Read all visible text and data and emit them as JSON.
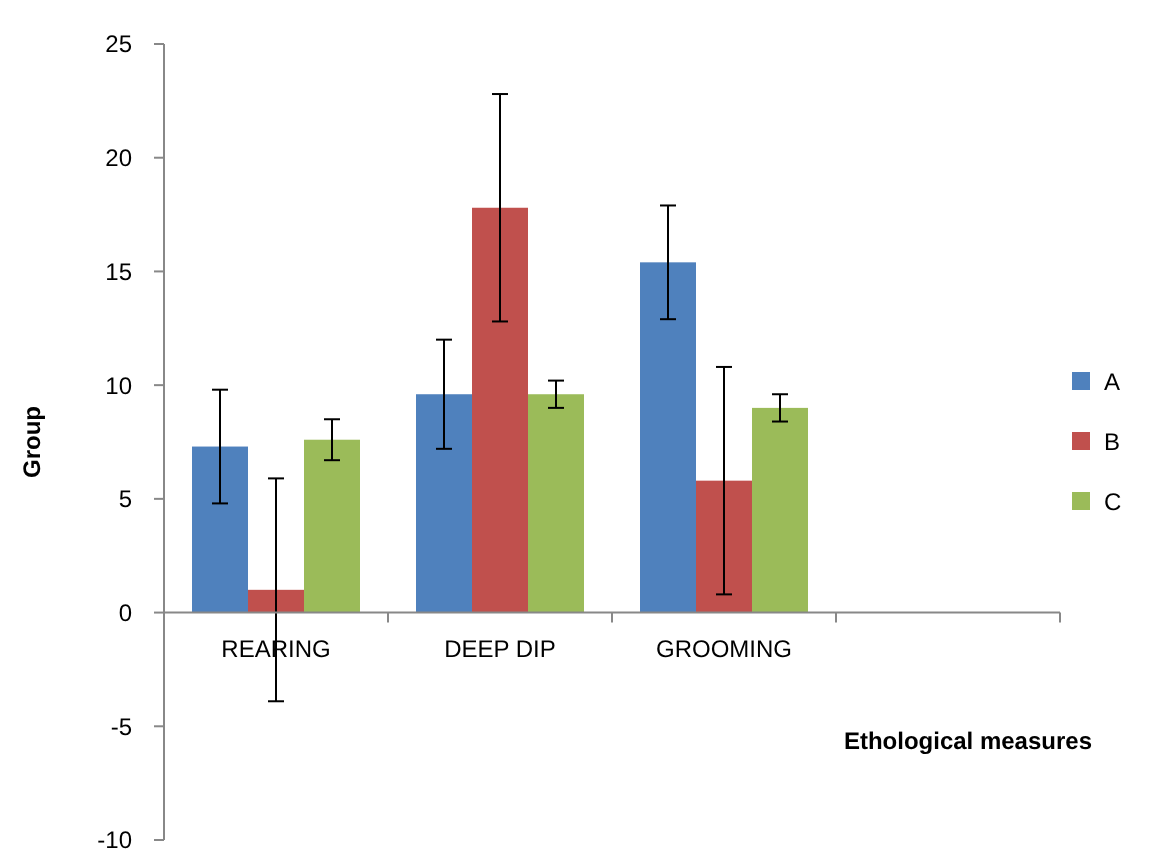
{
  "chart_data": {
    "type": "bar",
    "xlabel": "Ethological measures",
    "ylabel": "Group",
    "categories": [
      "REARING",
      "DEEP DIP",
      "GROOMING",
      null
    ],
    "series": [
      {
        "name": "A",
        "color": "#4f81bd",
        "values": [
          7.3,
          9.6,
          15.4,
          null
        ],
        "errors": [
          2.5,
          2.4,
          2.5,
          null
        ]
      },
      {
        "name": "B",
        "color": "#c0504d",
        "values": [
          1.0,
          17.8,
          5.8,
          null
        ],
        "errors": [
          4.9,
          5.0,
          5.0,
          null
        ]
      },
      {
        "name": "C",
        "color": "#9bbb59",
        "values": [
          7.6,
          9.6,
          9.0,
          null
        ],
        "errors": [
          0.9,
          0.6,
          0.6,
          null
        ]
      }
    ],
    "ylim": [
      -10,
      25
    ],
    "yticks": [
      -10,
      -5,
      0,
      5,
      10,
      15,
      20,
      25
    ],
    "grid": false,
    "legend": "right"
  }
}
